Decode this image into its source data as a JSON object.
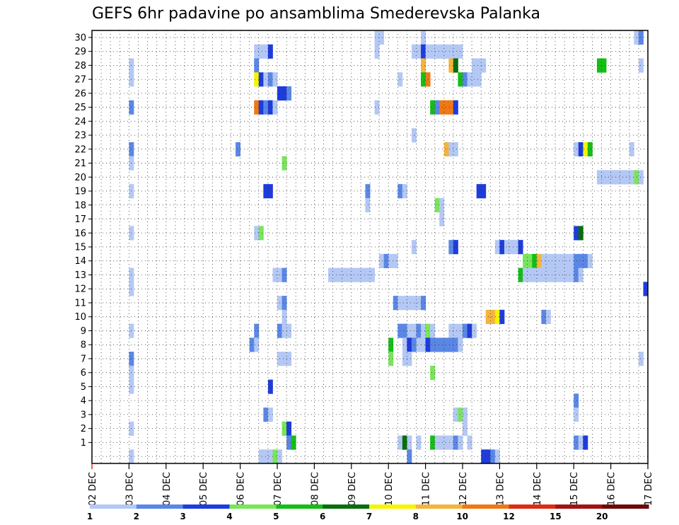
{
  "chart_data": {
    "type": "heatmap",
    "title": "GEFS 6hr padavine po ansamblima Smederevska Palanka",
    "xlabel": "",
    "ylabel": "",
    "x_ticks": [
      "02 DEC",
      "03 DEC",
      "04 DEC",
      "05 DEC",
      "06 DEC",
      "07 DEC",
      "08 DEC",
      "09 DEC",
      "10 DEC",
      "11 DEC",
      "12 DEC",
      "13 DEC",
      "14 DEC",
      "15 DEC",
      "16 DEC",
      "17 DEC"
    ],
    "y_ticks": [
      "1",
      "2",
      "3",
      "4",
      "5",
      "6",
      "7",
      "8",
      "9",
      "10",
      "11",
      "12",
      "13",
      "14",
      "15",
      "16",
      "17",
      "18",
      "19",
      "20",
      "21",
      "22",
      "23",
      "24",
      "25",
      "26",
      "27",
      "28",
      "29",
      "30"
    ],
    "x_start": "2 DEC 00Z",
    "step_hours": 6,
    "grid": true,
    "colorbar": {
      "labels": [
        "1",
        "2",
        "3",
        "4",
        "5",
        "6",
        "7",
        "8",
        "10",
        "12",
        "15",
        "20"
      ],
      "colors": [
        "#b4c8f5",
        "#5a87e6",
        "#1e3cdc",
        "#78e65a",
        "#14be14",
        "#0a6e0a",
        "#f5f500",
        "#f5b43c",
        "#f07814",
        "#dc2d14",
        "#a01414",
        "#6e0a0a"
      ]
    },
    "cells": [
      [
        30,
        [
          [
            61,
            1
          ],
          [
            62,
            1
          ],
          [
            71,
            1
          ],
          [
            117,
            1
          ],
          [
            118,
            2
          ]
        ]
      ],
      [
        29,
        [
          [
            35,
            1
          ],
          [
            36,
            1
          ],
          [
            37,
            1
          ],
          [
            38,
            3
          ],
          [
            61,
            1
          ],
          [
            69,
            1
          ],
          [
            70,
            1
          ],
          [
            71,
            3
          ],
          [
            72,
            1
          ],
          [
            73,
            1
          ],
          [
            74,
            1
          ],
          [
            75,
            1
          ],
          [
            76,
            1
          ],
          [
            77,
            1
          ],
          [
            78,
            1
          ],
          [
            79,
            1
          ]
        ]
      ],
      [
        28,
        [
          [
            8,
            1
          ],
          [
            35,
            2
          ],
          [
            71,
            8
          ],
          [
            77,
            8
          ],
          [
            78,
            6
          ],
          [
            82,
            1
          ],
          [
            83,
            1
          ],
          [
            84,
            1
          ],
          [
            109,
            5
          ],
          [
            110,
            5
          ],
          [
            118,
            1
          ]
        ]
      ],
      [
        27,
        [
          [
            8,
            1
          ],
          [
            35,
            7
          ],
          [
            36,
            3
          ],
          [
            37,
            1
          ],
          [
            38,
            2
          ],
          [
            39,
            1
          ],
          [
            66,
            1
          ],
          [
            71,
            5
          ],
          [
            72,
            9
          ],
          [
            79,
            5
          ],
          [
            80,
            2
          ],
          [
            81,
            1
          ],
          [
            82,
            1
          ],
          [
            83,
            1
          ]
        ]
      ],
      [
        26,
        [
          [
            40,
            3
          ],
          [
            41,
            3
          ],
          [
            42,
            2
          ]
        ]
      ],
      [
        25,
        [
          [
            8,
            2
          ],
          [
            35,
            9
          ],
          [
            36,
            3
          ],
          [
            37,
            2
          ],
          [
            38,
            3
          ],
          [
            39,
            1
          ],
          [
            61,
            1
          ],
          [
            73,
            5
          ],
          [
            74,
            2
          ],
          [
            75,
            9
          ],
          [
            76,
            9
          ],
          [
            77,
            9
          ],
          [
            78,
            3
          ]
        ]
      ],
      [
        23,
        [
          [
            69,
            1
          ]
        ]
      ],
      [
        22,
        [
          [
            8,
            2
          ],
          [
            31,
            2
          ],
          [
            76,
            8
          ],
          [
            77,
            1
          ],
          [
            78,
            1
          ],
          [
            104,
            1
          ],
          [
            105,
            3
          ],
          [
            106,
            7
          ],
          [
            107,
            5
          ],
          [
            116,
            1
          ]
        ]
      ],
      [
        21,
        [
          [
            8,
            1
          ],
          [
            41,
            4
          ]
        ]
      ],
      [
        20,
        [
          [
            109,
            1
          ],
          [
            110,
            1
          ],
          [
            111,
            1
          ],
          [
            112,
            1
          ],
          [
            113,
            1
          ],
          [
            114,
            1
          ],
          [
            115,
            1
          ],
          [
            116,
            1
          ],
          [
            117,
            4
          ],
          [
            118,
            1
          ]
        ]
      ],
      [
        19,
        [
          [
            8,
            1
          ],
          [
            37,
            3
          ],
          [
            38,
            3
          ],
          [
            59,
            2
          ],
          [
            66,
            2
          ],
          [
            67,
            1
          ],
          [
            83,
            3
          ],
          [
            84,
            3
          ]
        ]
      ],
      [
        18,
        [
          [
            59,
            1
          ],
          [
            74,
            4
          ],
          [
            75,
            1
          ]
        ]
      ],
      [
        17,
        [
          [
            75,
            1
          ]
        ]
      ],
      [
        16,
        [
          [
            8,
            1
          ],
          [
            35,
            1
          ],
          [
            36,
            4
          ],
          [
            104,
            3
          ],
          [
            105,
            6
          ]
        ]
      ],
      [
        15,
        [
          [
            69,
            1
          ],
          [
            77,
            2
          ],
          [
            78,
            3
          ],
          [
            87,
            1
          ],
          [
            88,
            3
          ],
          [
            89,
            1
          ],
          [
            90,
            1
          ],
          [
            91,
            1
          ],
          [
            92,
            3
          ]
        ]
      ],
      [
        14,
        [
          [
            62,
            1
          ],
          [
            63,
            2
          ],
          [
            64,
            1
          ],
          [
            65,
            1
          ],
          [
            93,
            4
          ],
          [
            94,
            4
          ],
          [
            95,
            5
          ],
          [
            96,
            8
          ],
          [
            97,
            1
          ],
          [
            98,
            1
          ],
          [
            99,
            1
          ],
          [
            100,
            1
          ],
          [
            101,
            1
          ],
          [
            102,
            1
          ],
          [
            103,
            1
          ],
          [
            104,
            2
          ],
          [
            105,
            2
          ],
          [
            106,
            2
          ],
          [
            107,
            1
          ]
        ]
      ],
      [
        13,
        [
          [
            8,
            1
          ],
          [
            39,
            1
          ],
          [
            40,
            1
          ],
          [
            41,
            2
          ],
          [
            51,
            1
          ],
          [
            52,
            1
          ],
          [
            53,
            1
          ],
          [
            54,
            1
          ],
          [
            55,
            1
          ],
          [
            56,
            1
          ],
          [
            57,
            1
          ],
          [
            58,
            1
          ],
          [
            59,
            1
          ],
          [
            60,
            1
          ],
          [
            92,
            5
          ],
          [
            93,
            1
          ],
          [
            94,
            1
          ],
          [
            95,
            1
          ],
          [
            96,
            1
          ],
          [
            97,
            1
          ],
          [
            98,
            1
          ],
          [
            99,
            1
          ],
          [
            100,
            1
          ],
          [
            101,
            1
          ],
          [
            102,
            1
          ],
          [
            103,
            1
          ],
          [
            104,
            2
          ],
          [
            105,
            1
          ]
        ]
      ],
      [
        12,
        [
          [
            8,
            1
          ],
          [
            119,
            3
          ]
        ]
      ],
      [
        11,
        [
          [
            40,
            1
          ],
          [
            41,
            2
          ],
          [
            65,
            2
          ],
          [
            66,
            1
          ],
          [
            67,
            1
          ],
          [
            68,
            1
          ],
          [
            69,
            1
          ],
          [
            70,
            1
          ],
          [
            71,
            2
          ]
        ]
      ],
      [
        10,
        [
          [
            41,
            1
          ],
          [
            85,
            8
          ],
          [
            86,
            8
          ],
          [
            87,
            7
          ],
          [
            88,
            3
          ],
          [
            97,
            2
          ],
          [
            98,
            1
          ]
        ]
      ],
      [
        9,
        [
          [
            8,
            1
          ],
          [
            35,
            2
          ],
          [
            40,
            2
          ],
          [
            41,
            1
          ],
          [
            42,
            1
          ],
          [
            66,
            2
          ],
          [
            67,
            2
          ],
          [
            68,
            1
          ],
          [
            69,
            1
          ],
          [
            70,
            2
          ],
          [
            71,
            1
          ],
          [
            72,
            4
          ],
          [
            73,
            1
          ],
          [
            77,
            1
          ],
          [
            78,
            1
          ],
          [
            79,
            1
          ],
          [
            80,
            2
          ],
          [
            81,
            3
          ],
          [
            82,
            1
          ]
        ]
      ],
      [
        8,
        [
          [
            34,
            2
          ],
          [
            35,
            1
          ],
          [
            64,
            5
          ],
          [
            67,
            1
          ],
          [
            68,
            3
          ],
          [
            69,
            2
          ],
          [
            70,
            1
          ],
          [
            71,
            1
          ],
          [
            72,
            3
          ],
          [
            73,
            2
          ],
          [
            74,
            2
          ],
          [
            75,
            2
          ],
          [
            76,
            2
          ],
          [
            77,
            2
          ],
          [
            78,
            2
          ],
          [
            79,
            1
          ]
        ]
      ],
      [
        7,
        [
          [
            8,
            2
          ],
          [
            40,
            1
          ],
          [
            41,
            1
          ],
          [
            42,
            1
          ],
          [
            64,
            4
          ],
          [
            67,
            1
          ],
          [
            68,
            1
          ],
          [
            118,
            1
          ]
        ]
      ],
      [
        6,
        [
          [
            8,
            1
          ],
          [
            73,
            4
          ]
        ]
      ],
      [
        5,
        [
          [
            8,
            1
          ],
          [
            38,
            3
          ]
        ]
      ],
      [
        4,
        [
          [
            104,
            2
          ]
        ]
      ],
      [
        3,
        [
          [
            37,
            2
          ],
          [
            38,
            1
          ],
          [
            78,
            1
          ],
          [
            79,
            4
          ],
          [
            80,
            1
          ],
          [
            104,
            1
          ]
        ]
      ],
      [
        2,
        [
          [
            8,
            1
          ],
          [
            41,
            4
          ],
          [
            42,
            3
          ],
          [
            80,
            1
          ]
        ]
      ],
      [
        1,
        [
          [
            42,
            2
          ],
          [
            43,
            5
          ],
          [
            66,
            1
          ],
          [
            67,
            6
          ],
          [
            68,
            1
          ],
          [
            70,
            1
          ],
          [
            73,
            5
          ],
          [
            74,
            1
          ],
          [
            75,
            1
          ],
          [
            76,
            1
          ],
          [
            77,
            1
          ],
          [
            78,
            2
          ],
          [
            79,
            1
          ],
          [
            81,
            1
          ],
          [
            104,
            2
          ],
          [
            105,
            1
          ],
          [
            106,
            3
          ]
        ]
      ],
      [
        0,
        [
          [
            8,
            1
          ],
          [
            36,
            1
          ],
          [
            37,
            1
          ],
          [
            38,
            1
          ],
          [
            39,
            4
          ],
          [
            40,
            1
          ],
          [
            68,
            2
          ],
          [
            84,
            3
          ],
          [
            85,
            3
          ],
          [
            86,
            2
          ],
          [
            87,
            1
          ]
        ]
      ]
    ]
  }
}
